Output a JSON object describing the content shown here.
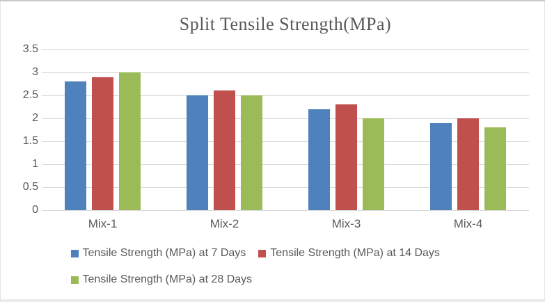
{
  "chart_data": {
    "type": "bar",
    "title": "Split Tensile Strength(MPa)",
    "categories": [
      "Mix-1",
      "Mix-2",
      "Mix-3",
      "Mix-4"
    ],
    "series": [
      {
        "name": "Tensile Strength (MPa) at 7 Days",
        "color": "#4F81BD",
        "values": [
          2.8,
          2.5,
          2.2,
          1.9
        ]
      },
      {
        "name": "Tensile Strength (MPa) at 14 Days",
        "color": "#C0504D",
        "values": [
          2.9,
          2.6,
          2.3,
          2.0
        ]
      },
      {
        "name": "Tensile Strength (MPa) at 28 Days",
        "color": "#9BBB59",
        "values": [
          3.0,
          2.5,
          2.0,
          1.8
        ]
      }
    ],
    "ylim": [
      0,
      3.5
    ],
    "ytick_step": 0.5,
    "yticks": [
      "3.5",
      "3",
      "2.5",
      "2",
      "1.5",
      "1",
      "0.5",
      "0"
    ],
    "xlabel": "",
    "ylabel": "",
    "grid": true,
    "legend_position": "bottom",
    "colors": {
      "gridline": "#d9d9d9",
      "axis_text": "#595959",
      "title_text": "#595959",
      "background": "#ffffff"
    }
  }
}
